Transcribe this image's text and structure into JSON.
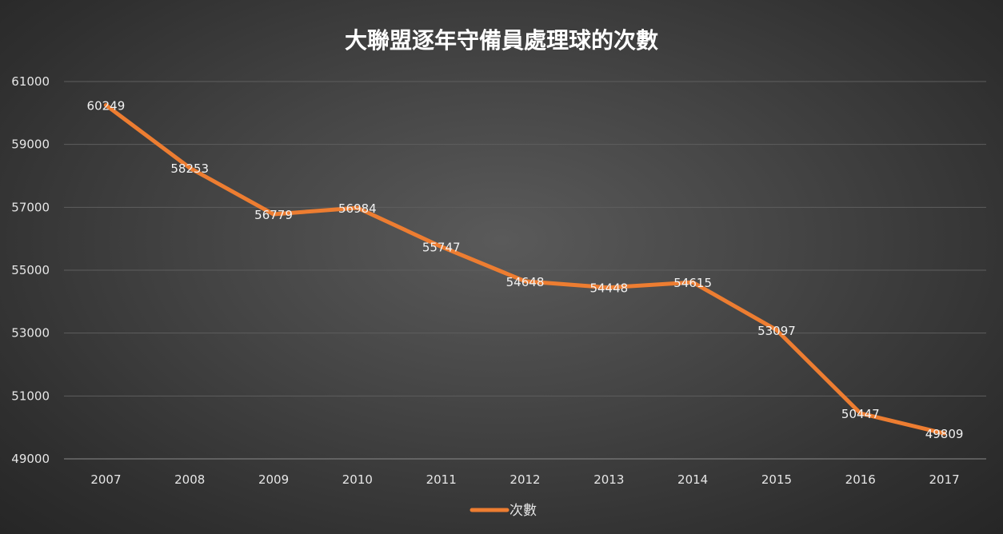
{
  "chart_data": {
    "type": "line",
    "title": "大聯盟逐年守備員處理球的次數",
    "xlabel": "",
    "ylabel": "",
    "categories": [
      "2007",
      "2008",
      "2009",
      "2010",
      "2011",
      "2012",
      "2013",
      "2014",
      "2015",
      "2016",
      "2017"
    ],
    "series": [
      {
        "name": "次數",
        "color": "#ed7d31",
        "values": [
          60249,
          58253,
          56779,
          56984,
          55747,
          54648,
          54448,
          54615,
          53097,
          50447,
          49809
        ]
      }
    ],
    "ylim": [
      49000,
      61000
    ],
    "yticks": [
      "49000",
      "51000",
      "53000",
      "55000",
      "57000",
      "59000",
      "61000"
    ],
    "grid": true,
    "legend": "bottom"
  }
}
